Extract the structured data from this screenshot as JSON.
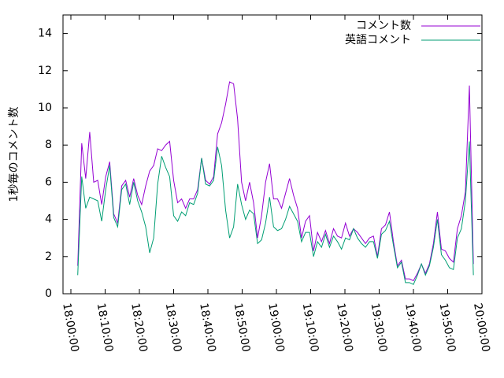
{
  "chart_data": {
    "type": "line",
    "ylabel": "1秒毎のコメント数",
    "x": [
      "18:02:00",
      "18:03:10",
      "18:04:20",
      "18:05:30",
      "18:06:40",
      "18:07:50",
      "18:09:00",
      "18:10:10",
      "18:11:20",
      "18:12:30",
      "18:13:40",
      "18:14:50",
      "18:16:00",
      "18:17:10",
      "18:18:20",
      "18:19:30",
      "18:20:40",
      "18:21:50",
      "18:23:00",
      "18:24:10",
      "18:25:20",
      "18:26:30",
      "18:27:40",
      "18:28:50",
      "18:30:00",
      "18:31:10",
      "18:32:20",
      "18:33:30",
      "18:34:40",
      "18:35:50",
      "18:37:00",
      "18:38:10",
      "18:39:20",
      "18:40:30",
      "18:41:40",
      "18:42:50",
      "18:44:00",
      "18:45:10",
      "18:46:20",
      "18:47:30",
      "18:48:40",
      "18:49:50",
      "18:51:00",
      "18:52:10",
      "18:53:20",
      "18:54:30",
      "18:55:40",
      "18:56:50",
      "18:58:00",
      "18:59:10",
      "19:00:20",
      "19:01:30",
      "19:02:40",
      "19:03:50",
      "19:05:00",
      "19:06:10",
      "19:07:20",
      "19:08:30",
      "19:09:40",
      "19:10:50",
      "19:12:00",
      "19:13:10",
      "19:14:20",
      "19:15:30",
      "19:16:40",
      "19:17:50",
      "19:19:00",
      "19:20:10",
      "19:21:20",
      "19:22:30",
      "19:23:40",
      "19:24:50",
      "19:26:00",
      "19:27:10",
      "19:28:20",
      "19:29:30",
      "19:30:40",
      "19:31:50",
      "19:33:00",
      "19:34:10",
      "19:35:20",
      "19:36:30",
      "19:37:40",
      "19:38:50",
      "19:40:00",
      "19:41:10",
      "19:42:20",
      "19:43:30",
      "19:44:40",
      "19:45:50",
      "19:47:00",
      "19:48:10",
      "19:49:20",
      "19:50:30",
      "19:51:40",
      "19:52:50",
      "19:54:00",
      "19:55:10",
      "19:56:20",
      "19:57:30"
    ],
    "series": [
      {
        "name": "コメント数",
        "color": "#9400d3",
        "values": [
          1.5,
          8.1,
          6.2,
          8.7,
          6.0,
          6.1,
          4.8,
          6.3,
          7.1,
          4.3,
          3.8,
          5.8,
          6.1,
          5.2,
          6.2,
          5.3,
          4.8,
          5.8,
          6.6,
          6.9,
          7.8,
          7.7,
          8.0,
          8.2,
          6.1,
          4.9,
          5.1,
          4.6,
          5.1,
          5.1,
          5.6,
          7.3,
          6.1,
          5.9,
          6.3,
          8.6,
          9.2,
          10.2,
          11.4,
          11.3,
          9.4,
          6.0,
          5.0,
          6.0,
          4.9,
          3.0,
          4.2,
          6.0,
          7.0,
          5.1,
          5.1,
          4.6,
          5.4,
          6.2,
          5.3,
          4.6,
          3.0,
          3.9,
          4.2,
          2.3,
          3.3,
          2.8,
          3.4,
          2.7,
          3.5,
          3.1,
          3.0,
          3.8,
          3.1,
          3.5,
          3.3,
          3.0,
          2.7,
          3.0,
          3.1,
          2.0,
          3.5,
          3.7,
          4.4,
          2.8,
          1.5,
          1.8,
          0.8,
          0.8,
          0.7,
          1.1,
          1.6,
          1.1,
          1.6,
          2.7,
          4.4,
          2.4,
          2.3,
          1.9,
          1.7,
          3.5,
          4.2,
          5.5,
          11.2,
          1.6
        ]
      },
      {
        "name": "英語コメント",
        "color": "#009e73",
        "values": [
          1.0,
          6.3,
          4.6,
          5.2,
          5.1,
          5.0,
          3.9,
          5.6,
          6.9,
          4.1,
          3.6,
          5.6,
          5.9,
          4.8,
          6.0,
          5.0,
          4.4,
          3.6,
          2.2,
          3.0,
          5.9,
          7.4,
          6.8,
          6.3,
          4.2,
          3.9,
          4.4,
          4.2,
          4.9,
          4.8,
          5.4,
          7.3,
          5.9,
          5.8,
          6.1,
          7.9,
          6.9,
          4.5,
          3.0,
          3.6,
          5.9,
          4.8,
          4.0,
          4.5,
          4.3,
          2.7,
          2.9,
          3.8,
          5.2,
          3.6,
          3.4,
          3.5,
          4.0,
          4.7,
          4.3,
          3.9,
          2.8,
          3.3,
          3.3,
          2.0,
          2.8,
          2.5,
          3.2,
          2.5,
          3.1,
          2.8,
          2.4,
          3.0,
          2.9,
          3.5,
          3.0,
          2.7,
          2.5,
          2.8,
          2.8,
          1.9,
          3.2,
          3.4,
          3.9,
          2.6,
          1.4,
          1.7,
          0.6,
          0.6,
          0.5,
          1.0,
          1.6,
          1.0,
          1.5,
          2.5,
          4.0,
          2.1,
          1.8,
          1.4,
          1.3,
          3.0,
          3.5,
          5.0,
          8.2,
          1.0
        ]
      }
    ],
    "xlim": [
      "17:57:42",
      "20:00:00"
    ],
    "xticks": [
      "18:00:00",
      "18:10:00",
      "18:20:00",
      "18:30:00",
      "18:40:00",
      "18:50:00",
      "19:00:00",
      "19:10:00",
      "19:20:00",
      "19:30:00",
      "19:40:00",
      "19:50:00",
      "20:00:00"
    ],
    "ylim": [
      0,
      15
    ],
    "yticks": [
      0,
      2,
      4,
      6,
      8,
      10,
      12,
      14
    ],
    "legend": "top-right"
  }
}
